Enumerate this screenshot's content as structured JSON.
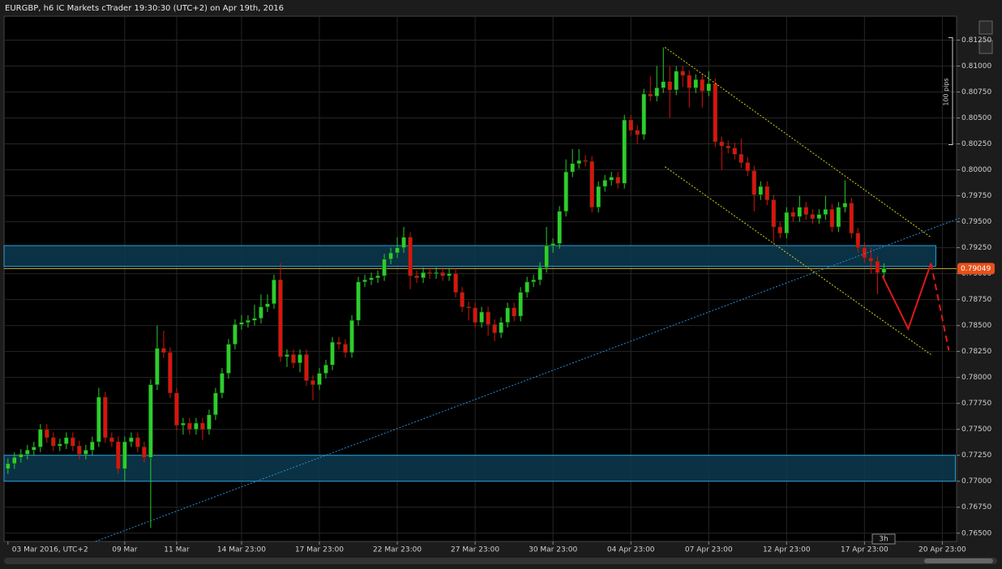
{
  "chart_data": {
    "type": "candlestick",
    "title": "EURGBP, h6 IC Markets cTrader 19:30:30 (UTC+2) on Apr 19th, 2016",
    "open": [
      0.7712,
      0.7717,
      0.7723,
      0.7726,
      0.773,
      0.7733,
      0.775,
      0.7742,
      0.7734,
      0.7736,
      0.7742,
      0.7734,
      0.7726,
      0.773,
      0.7738,
      0.7781,
      0.7742,
      0.7738,
      0.7712,
      0.7738,
      0.7742,
      0.7733,
      0.7723,
      0.7793,
      0.7828,
      0.7824,
      0.7785,
      0.7754,
      0.7756,
      0.775,
      0.7756,
      0.775,
      0.7764,
      0.7785,
      0.7804,
      0.7832,
      0.7851,
      0.7853,
      0.7855,
      0.7857,
      0.7868,
      0.7871,
      0.7894,
      0.782,
      0.7822,
      0.7814,
      0.7822,
      0.7797,
      0.7793,
      0.7804,
      0.7812,
      0.7834,
      0.7832,
      0.7824,
      0.7855,
      0.7892,
      0.7894,
      0.7896,
      0.7898,
      0.7914,
      0.792,
      0.7925,
      0.7935,
      0.7898,
      0.7896,
      0.7901,
      0.79,
      0.7901,
      0.7898,
      0.79,
      0.7882,
      0.7868,
      0.7867,
      0.7853,
      0.7863,
      0.7851,
      0.7843,
      0.7853,
      0.7867,
      0.7859,
      0.7882,
      0.7892,
      0.7894,
      0.7906,
      0.7927,
      0.7929,
      0.796,
      0.7998,
      0.8006,
      0.8009,
      0.8008,
      0.7964,
      0.7984,
      0.799,
      0.7993,
      0.7987,
      0.8048,
      0.8038,
      0.8034,
      0.8073,
      0.8071,
      0.8079,
      0.8085,
      0.8077,
      0.8095,
      0.8091,
      0.8079,
      0.8087,
      0.8076,
      0.8083,
      0.8027,
      0.8023,
      0.8021,
      0.8015,
      0.8007,
      0.7999,
      0.7976,
      0.7984,
      0.7971,
      0.7945,
      0.7939,
      0.7959,
      0.7955,
      0.7964,
      0.7957,
      0.7953,
      0.7957,
      0.7962,
      0.7945,
      0.7964,
      0.7968,
      0.7939,
      0.7925,
      0.7915,
      0.7912,
      0.7901
    ],
    "close": [
      0.7717,
      0.7723,
      0.7726,
      0.773,
      0.7733,
      0.775,
      0.7742,
      0.7734,
      0.7736,
      0.7742,
      0.7734,
      0.7726,
      0.773,
      0.7738,
      0.7781,
      0.7742,
      0.7738,
      0.7712,
      0.7738,
      0.7742,
      0.7733,
      0.7723,
      0.7793,
      0.7828,
      0.7824,
      0.7785,
      0.7754,
      0.7756,
      0.775,
      0.7756,
      0.775,
      0.7764,
      0.7785,
      0.7804,
      0.7832,
      0.7851,
      0.7853,
      0.7855,
      0.7857,
      0.7868,
      0.7871,
      0.7894,
      0.782,
      0.7822,
      0.7814,
      0.7822,
      0.7797,
      0.7793,
      0.7804,
      0.7812,
      0.7834,
      0.7832,
      0.7824,
      0.7855,
      0.7892,
      0.7894,
      0.7896,
      0.7898,
      0.7914,
      0.792,
      0.7925,
      0.7935,
      0.7898,
      0.7896,
      0.7901,
      0.79,
      0.7901,
      0.7898,
      0.79,
      0.7882,
      0.7868,
      0.7867,
      0.7853,
      0.7863,
      0.7851,
      0.7843,
      0.7853,
      0.7867,
      0.7859,
      0.7882,
      0.7892,
      0.7894,
      0.7906,
      0.7927,
      0.7929,
      0.796,
      0.7998,
      0.8006,
      0.8009,
      0.8008,
      0.7964,
      0.7984,
      0.799,
      0.7993,
      0.7987,
      0.8048,
      0.8038,
      0.8034,
      0.8073,
      0.8071,
      0.8079,
      0.8085,
      0.8077,
      0.8095,
      0.8091,
      0.8079,
      0.8087,
      0.8076,
      0.8083,
      0.8027,
      0.8023,
      0.8021,
      0.8015,
      0.8007,
      0.7999,
      0.7976,
      0.7984,
      0.7971,
      0.7945,
      0.7939,
      0.7959,
      0.7955,
      0.7964,
      0.7957,
      0.7953,
      0.7957,
      0.7962,
      0.7945,
      0.7964,
      0.7968,
      0.7939,
      0.7925,
      0.7915,
      0.7912,
      0.7901,
      0.7905
    ],
    "high": [
      0.7722,
      0.7728,
      0.7731,
      0.7735,
      0.7738,
      0.7755,
      0.7755,
      0.7747,
      0.7741,
      0.7747,
      0.7747,
      0.7739,
      0.7735,
      0.7743,
      0.779,
      0.7786,
      0.7747,
      0.7743,
      0.7743,
      0.7747,
      0.7747,
      0.7738,
      0.7798,
      0.785,
      0.7845,
      0.7829,
      0.779,
      0.7761,
      0.7761,
      0.7761,
      0.7761,
      0.7769,
      0.779,
      0.7809,
      0.7837,
      0.7856,
      0.786,
      0.786,
      0.787,
      0.788,
      0.788,
      0.7899,
      0.791,
      0.7827,
      0.7827,
      0.7827,
      0.7827,
      0.7802,
      0.7809,
      0.7817,
      0.7839,
      0.7839,
      0.7837,
      0.786,
      0.7897,
      0.7899,
      0.7901,
      0.7903,
      0.7919,
      0.7925,
      0.7935,
      0.7945,
      0.794,
      0.7903,
      0.7906,
      0.7906,
      0.7906,
      0.7906,
      0.7905,
      0.7905,
      0.7887,
      0.7873,
      0.7872,
      0.7868,
      0.7868,
      0.7856,
      0.7858,
      0.7872,
      0.7872,
      0.7887,
      0.7897,
      0.7899,
      0.7911,
      0.7945,
      0.7934,
      0.7965,
      0.801,
      0.802,
      0.802,
      0.8014,
      0.8013,
      0.7989,
      0.7995,
      0.7998,
      0.7998,
      0.8053,
      0.8053,
      0.8043,
      0.8078,
      0.809,
      0.81,
      0.8118,
      0.81,
      0.81,
      0.81,
      0.8096,
      0.8092,
      0.8092,
      0.8095,
      0.8088,
      0.8032,
      0.8028,
      0.8026,
      0.803,
      0.8012,
      0.8004,
      0.7989,
      0.7989,
      0.7976,
      0.795,
      0.7964,
      0.7964,
      0.7975,
      0.7969,
      0.7962,
      0.7962,
      0.7975,
      0.7967,
      0.7969,
      0.799,
      0.7973,
      0.7944,
      0.793,
      0.7925,
      0.7917,
      0.791
    ],
    "low": [
      0.7707,
      0.7712,
      0.7718,
      0.7721,
      0.7725,
      0.7728,
      0.7737,
      0.7729,
      0.7729,
      0.7731,
      0.7729,
      0.7721,
      0.7721,
      0.7725,
      0.7733,
      0.7737,
      0.7733,
      0.7707,
      0.77,
      0.7733,
      0.7728,
      0.7718,
      0.7655,
      0.7788,
      0.7819,
      0.778,
      0.7749,
      0.7745,
      0.7745,
      0.7745,
      0.774,
      0.7745,
      0.7759,
      0.778,
      0.7799,
      0.7827,
      0.7846,
      0.7848,
      0.785,
      0.7852,
      0.7863,
      0.7866,
      0.7815,
      0.781,
      0.7809,
      0.7805,
      0.7792,
      0.7778,
      0.7788,
      0.7799,
      0.7807,
      0.7827,
      0.7819,
      0.7819,
      0.785,
      0.7887,
      0.7889,
      0.7891,
      0.7893,
      0.7909,
      0.7915,
      0.792,
      0.7885,
      0.7891,
      0.7891,
      0.7895,
      0.7895,
      0.7893,
      0.7893,
      0.7877,
      0.7863,
      0.7855,
      0.7848,
      0.7848,
      0.784,
      0.7835,
      0.7838,
      0.7848,
      0.7854,
      0.7854,
      0.7877,
      0.7887,
      0.7889,
      0.7901,
      0.792,
      0.7924,
      0.7955,
      0.7993,
      0.8001,
      0.8003,
      0.7959,
      0.7959,
      0.7979,
      0.7985,
      0.7982,
      0.7982,
      0.8033,
      0.8025,
      0.8029,
      0.8066,
      0.8066,
      0.8074,
      0.805,
      0.8072,
      0.808,
      0.806,
      0.8074,
      0.806,
      0.8071,
      0.8022,
      0.8,
      0.8016,
      0.801,
      0.8002,
      0.7994,
      0.796,
      0.7971,
      0.7966,
      0.793,
      0.7934,
      0.7934,
      0.795,
      0.795,
      0.7952,
      0.7948,
      0.7948,
      0.7952,
      0.794,
      0.794,
      0.7959,
      0.7934,
      0.792,
      0.791,
      0.79,
      0.788,
      0.7896
    ],
    "bull_color": "#2ecc2e",
    "bear_color": "#e01010",
    "ylim": [
      0.7642,
      0.8148
    ],
    "yticks": [
      {
        "value": 0.765,
        "label": "0.76500"
      },
      {
        "value": 0.7675,
        "label": "0.76750"
      },
      {
        "value": 0.77,
        "label": "0.77000"
      },
      {
        "value": 0.7725,
        "label": "0.77250"
      },
      {
        "value": 0.775,
        "label": "0.77500"
      },
      {
        "value": 0.7775,
        "label": "0.77750"
      },
      {
        "value": 0.78,
        "label": "0.78000"
      },
      {
        "value": 0.7825,
        "label": "0.78250"
      },
      {
        "value": 0.785,
        "label": "0.78500"
      },
      {
        "value": 0.7875,
        "label": "0.78750"
      },
      {
        "value": 0.79,
        "label": "0.79000"
      },
      {
        "value": 0.7925,
        "label": "0.79250"
      },
      {
        "value": 0.795,
        "label": "0.79500"
      },
      {
        "value": 0.7975,
        "label": "0.79750"
      },
      {
        "value": 0.8,
        "label": "0.80000"
      },
      {
        "value": 0.8025,
        "label": "0.80250"
      },
      {
        "value": 0.805,
        "label": "0.80500"
      },
      {
        "value": 0.8075,
        "label": "0.80750"
      },
      {
        "value": 0.81,
        "label": "0.81000"
      },
      {
        "value": 0.8125,
        "label": "0.81250"
      }
    ],
    "xlim": [
      -0.6,
      146.2
    ],
    "xticks": [
      {
        "value": 0,
        "label": "03 Mar 2016, UTC+2"
      },
      {
        "value": 18,
        "label": "09 Mar"
      },
      {
        "value": 26,
        "label": "11 Mar"
      },
      {
        "value": 36,
        "label": "14 Mar 23:00"
      },
      {
        "value": 48,
        "label": "17 Mar 23:00"
      },
      {
        "value": 60,
        "label": "22 Mar 23:00"
      },
      {
        "value": 72,
        "label": "27 Mar 23:00"
      },
      {
        "value": 84,
        "label": "30 Mar 23:00"
      },
      {
        "value": 96,
        "label": "04 Apr 23:00"
      },
      {
        "value": 108,
        "label": "07 Apr 23:00"
      },
      {
        "value": 120,
        "label": "12 Apr 23:00"
      },
      {
        "value": 132,
        "label": "17 Apr 23:00"
      },
      {
        "value": 144,
        "label": "20 Apr 23:00"
      }
    ],
    "grid": true,
    "current_price": 0.79049,
    "scale_label": "100 pips",
    "timer_label": "3h",
    "zones": [
      {
        "from": 0.7907,
        "to": 0.7927,
        "end": 143
      },
      {
        "from": 0.77,
        "to": 0.7725,
        "end": 146
      }
    ],
    "drawings": [
      {
        "color": "#2a8fd6",
        "style": "dotted",
        "x": [
          13.5,
          146.9
        ],
        "y": [
          0.7642,
          0.7954
        ]
      },
      {
        "color": "#d8d020",
        "style": "dotted",
        "x": [
          101.25,
          142.25
        ],
        "y": [
          0.8118,
          0.7935
        ]
      },
      {
        "color": "#d8d020",
        "style": "dotted",
        "x": [
          101.25,
          142.25
        ],
        "y": [
          0.8003,
          0.7822
        ]
      },
      {
        "color": "#e01818",
        "style": "solid",
        "x": [
          134.75,
          138.75,
          142.25
        ],
        "y": [
          0.7898,
          0.7847,
          0.791
        ]
      },
      {
        "color": "#e01818",
        "style": "dashed",
        "x": [
          142.25,
          145
        ],
        "y": [
          0.791,
          0.7826
        ]
      }
    ]
  }
}
